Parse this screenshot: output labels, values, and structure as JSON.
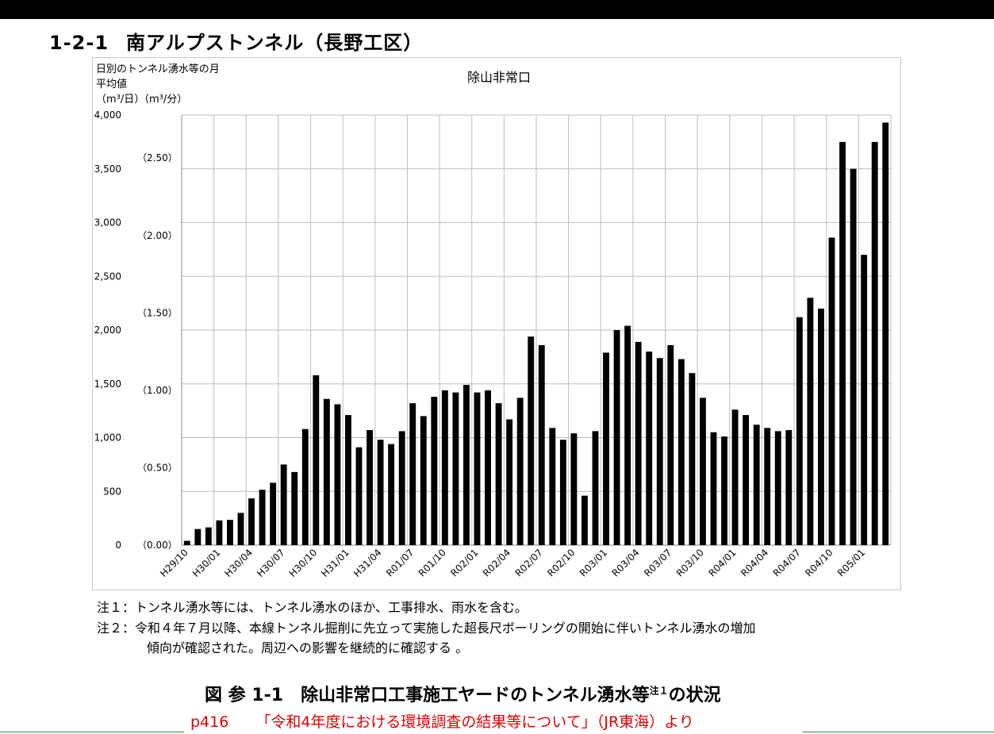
{
  "section": {
    "number": "1-2-1",
    "title": "南アルプストンネル（長野工区）"
  },
  "chart_data": {
    "type": "bar",
    "title": "除山非常口",
    "ylabel_lines": [
      "日別のトンネル湧水等の月",
      "平均値",
      "（m³/日）"
    ],
    "ylabel_secondary": "（m³/分）",
    "ylim": [
      0,
      4000
    ],
    "yticks": [
      "0",
      "500",
      "1,000",
      "1,500",
      "2,000",
      "2,500",
      "3,000",
      "3,500",
      "4,000"
    ],
    "yticks_secondary": [
      "（0.00）",
      "（0.50）",
      "（1.00）",
      "（1.50）",
      "（2.00）",
      "（2.50）"
    ],
    "grid": true,
    "legend": "none",
    "categories": [
      "H29/10",
      "H29/11",
      "H29/12",
      "H30/01",
      "H30/02",
      "H30/03",
      "H30/04",
      "H30/05",
      "H30/06",
      "H30/07",
      "H30/08",
      "H30/09",
      "H30/10",
      "H30/11",
      "H30/12",
      "H31/01",
      "H31/02",
      "H31/03",
      "H31/04",
      "R01/05",
      "R01/06",
      "R01/07",
      "R01/08",
      "R01/09",
      "R01/10",
      "R01/11",
      "R01/12",
      "R02/01",
      "R02/02",
      "R02/03",
      "R02/04",
      "R02/05",
      "R02/06",
      "R02/07",
      "R02/08",
      "R02/09",
      "R02/10",
      "R02/11",
      "R02/12",
      "R03/01",
      "R03/02",
      "R03/03",
      "R03/04",
      "R03/05",
      "R03/06",
      "R03/07",
      "R03/08",
      "R03/09",
      "R03/10",
      "R03/11",
      "R03/12",
      "R04/01",
      "R04/02",
      "R04/03",
      "R04/04",
      "R04/05",
      "R04/06",
      "R04/07",
      "R04/08",
      "R04/09",
      "R04/10",
      "R04/11",
      "R04/12",
      "R05/01",
      "R05/02",
      "R05/03"
    ],
    "xtick_labels": [
      "H29/10",
      "H30/01",
      "H30/04",
      "H30/07",
      "H30/10",
      "H31/01",
      "H31/04",
      "R01/07",
      "R01/10",
      "R02/01",
      "R02/04",
      "R02/07",
      "R02/10",
      "R03/01",
      "R03/04",
      "R03/07",
      "R03/10",
      "R04/01",
      "R04/04",
      "R04/07",
      "R04/10",
      "R05/01"
    ],
    "values": [
      40,
      150,
      165,
      230,
      235,
      300,
      435,
      515,
      580,
      750,
      680,
      1080,
      1580,
      1360,
      1310,
      1210,
      910,
      1070,
      980,
      940,
      1060,
      1320,
      1200,
      1380,
      1440,
      1420,
      1490,
      1420,
      1440,
      1320,
      1170,
      1370,
      1940,
      1860,
      1090,
      980,
      1040,
      460,
      1060,
      1790,
      2000,
      2040,
      1890,
      1800,
      1740,
      1860,
      1730,
      1600,
      1370,
      1050,
      1010,
      1260,
      1210,
      1120,
      1090,
      1060,
      1070,
      2120,
      2300,
      2200,
      2860,
      3750,
      3500,
      2700,
      3750,
      3930
    ]
  },
  "notes": {
    "note1": "注１：トンネル湧水等には、トンネル湧水のほか、工事排水、雨水を含む。",
    "note2": "注２：令和４年７月以降、本線トンネル掘削に先立って実施した超長尺ボーリングの開始に伴いトンネル湧水の増加",
    "note2_cont": "傾向が確認された。周辺への影響を継続的に確認する 。"
  },
  "caption": {
    "prefix": "図 参 1-1　除山非常口工事施工ヤードのトンネル湧水等",
    "sup": "注１",
    "suffix": "の状況"
  },
  "source": {
    "page": "p416",
    "text": "「令和4年度における環境調査の結果等について」（JR東海）より"
  }
}
